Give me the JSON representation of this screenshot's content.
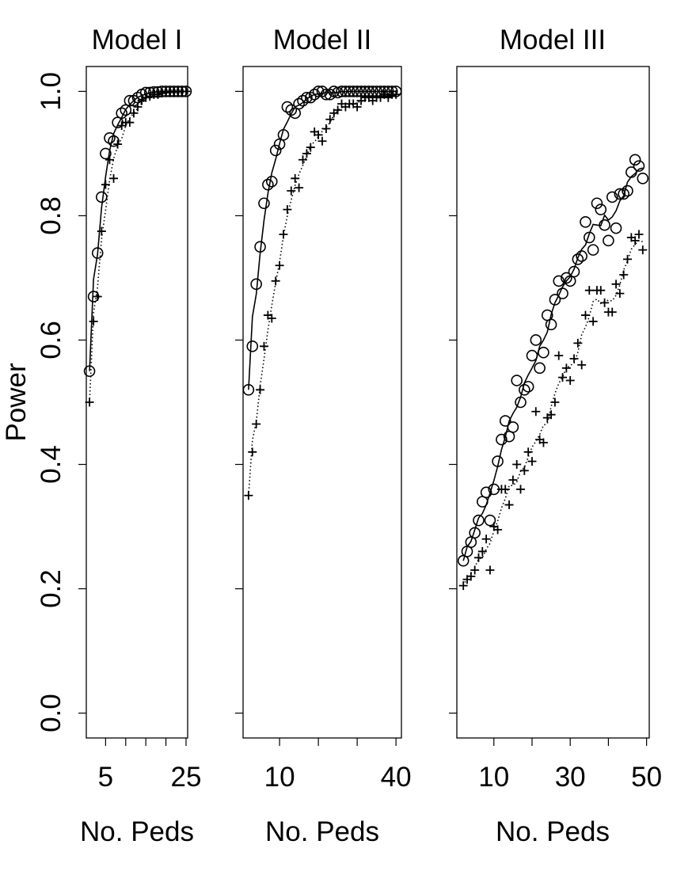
{
  "chart_data": [
    {
      "type": "scatter",
      "title": "Model I",
      "xlabel": "No. Peds",
      "ylabel": "Power",
      "xlim": [
        0.2,
        25.4
      ],
      "ylim": [
        -0.04,
        1.04
      ],
      "xticks": [
        5,
        10,
        15,
        20,
        25
      ],
      "xtick_labels": [
        "5",
        "",
        "",
        "",
        "25"
      ],
      "yticks": [
        0.0,
        0.2,
        0.4,
        0.6,
        0.8,
        1.0
      ],
      "ytick_labels": [
        "0.0",
        "0.2",
        "0.4",
        "0.6",
        "0.8",
        "1.0"
      ],
      "grid": false,
      "series": [
        {
          "name": "circles (solid line)",
          "marker": "o",
          "line": "solid",
          "x": [
            1,
            2,
            3,
            4,
            5,
            6,
            7,
            8,
            9,
            10,
            11,
            12,
            13,
            14,
            15,
            16,
            17,
            18,
            19,
            20,
            21,
            22,
            23,
            24,
            25
          ],
          "values": [
            0.55,
            0.67,
            0.74,
            0.83,
            0.9,
            0.925,
            0.92,
            0.95,
            0.965,
            0.97,
            0.985,
            0.985,
            0.99,
            0.995,
            0.998,
            0.998,
            0.999,
            0.999,
            1.0,
            1.0,
            1.0,
            1.0,
            1.0,
            1.0,
            1.0
          ]
        },
        {
          "name": "plus (dotted line)",
          "marker": "+",
          "line": "dotted",
          "x": [
            1,
            2,
            3,
            4,
            5,
            6,
            7,
            8,
            9,
            10,
            11,
            12,
            13,
            14,
            15,
            16,
            17,
            18,
            19,
            20,
            21,
            22,
            23,
            24,
            25
          ],
          "values": [
            0.5,
            0.63,
            0.67,
            0.775,
            0.85,
            0.89,
            0.86,
            0.915,
            0.945,
            0.95,
            0.95,
            0.965,
            0.975,
            0.985,
            0.99,
            0.992,
            0.995,
            0.995,
            0.997,
            0.998,
            0.999,
            0.999,
            1.0,
            1.0,
            1.0
          ]
        }
      ]
    },
    {
      "type": "scatter",
      "title": "Model II",
      "xlabel": "No. Peds",
      "ylabel": "",
      "xlim": [
        0.6,
        41.4
      ],
      "ylim": [
        -0.04,
        1.04
      ],
      "xticks": [
        10,
        20,
        30,
        40
      ],
      "xtick_labels": [
        "10",
        "",
        "",
        "40"
      ],
      "yticks": [
        0.0,
        0.2,
        0.4,
        0.6,
        0.8,
        1.0
      ],
      "grid": false,
      "series": [
        {
          "name": "circles (solid line)",
          "marker": "o",
          "line": "solid",
          "x": [
            2,
            3,
            4,
            5,
            6,
            7,
            8,
            9,
            10,
            11,
            12,
            13,
            14,
            15,
            16,
            17,
            18,
            19,
            20,
            21,
            22,
            23,
            24,
            25,
            26,
            27,
            28,
            29,
            30,
            31,
            32,
            33,
            34,
            35,
            36,
            37,
            38,
            39,
            40
          ],
          "values": [
            0.52,
            0.59,
            0.69,
            0.75,
            0.82,
            0.85,
            0.855,
            0.905,
            0.915,
            0.93,
            0.975,
            0.97,
            0.965,
            0.98,
            0.985,
            0.99,
            0.99,
            0.995,
            1.0,
            1.0,
            0.995,
            0.995,
            1.0,
            0.998,
            1.0,
            1.0,
            1.0,
            1.0,
            1.0,
            1.0,
            1.0,
            1.0,
            1.0,
            1.0,
            1.0,
            1.0,
            1.0,
            1.0,
            1.0
          ]
        },
        {
          "name": "plus (dotted line)",
          "marker": "+",
          "line": "dotted",
          "x": [
            2,
            3,
            4,
            5,
            6,
            7,
            8,
            9,
            10,
            11,
            12,
            13,
            14,
            15,
            16,
            17,
            18,
            19,
            20,
            21,
            22,
            23,
            24,
            25,
            26,
            27,
            28,
            29,
            30,
            31,
            32,
            33,
            34,
            35,
            36,
            37,
            38,
            39,
            40
          ],
          "values": [
            0.35,
            0.42,
            0.465,
            0.52,
            0.59,
            0.64,
            0.635,
            0.695,
            0.72,
            0.77,
            0.81,
            0.84,
            0.86,
            0.845,
            0.89,
            0.9,
            0.91,
            0.935,
            0.93,
            0.92,
            0.94,
            0.955,
            0.965,
            0.97,
            0.98,
            0.975,
            0.98,
            0.98,
            0.975,
            0.985,
            0.99,
            0.99,
            0.985,
            0.99,
            0.99,
            0.995,
            0.99,
            0.995,
            0.995
          ]
        }
      ]
    },
    {
      "type": "scatter",
      "title": "Model III",
      "xlabel": "No. Peds",
      "ylabel": "",
      "xlim": [
        0.3,
        50.7
      ],
      "ylim": [
        -0.04,
        1.04
      ],
      "xticks": [
        10,
        20,
        30,
        40,
        50
      ],
      "xtick_labels": [
        "10",
        "",
        "30",
        "",
        "50"
      ],
      "yticks": [
        0.0,
        0.2,
        0.4,
        0.6,
        0.8,
        1.0
      ],
      "grid": false,
      "series": [
        {
          "name": "circles (solid line)",
          "marker": "o",
          "line": "solid",
          "x": [
            2,
            3,
            4,
            5,
            6,
            7,
            8,
            9,
            10,
            11,
            12,
            13,
            14,
            15,
            16,
            17,
            18,
            19,
            20,
            21,
            22,
            23,
            24,
            25,
            26,
            27,
            28,
            29,
            30,
            31,
            32,
            33,
            34,
            35,
            36,
            37,
            38,
            39,
            40,
            41,
            42,
            43,
            44,
            45,
            46,
            47,
            48,
            49
          ],
          "values": [
            0.245,
            0.26,
            0.275,
            0.29,
            0.31,
            0.34,
            0.355,
            0.31,
            0.36,
            0.405,
            0.44,
            0.47,
            0.445,
            0.46,
            0.535,
            0.5,
            0.52,
            0.525,
            0.575,
            0.6,
            0.555,
            0.58,
            0.64,
            0.625,
            0.665,
            0.695,
            0.675,
            0.7,
            0.695,
            0.71,
            0.73,
            0.735,
            0.79,
            0.765,
            0.745,
            0.82,
            0.81,
            0.785,
            0.76,
            0.83,
            0.78,
            0.835,
            0.835,
            0.84,
            0.87,
            0.89,
            0.88,
            0.86
          ]
        },
        {
          "name": "plus (dotted line)",
          "marker": "+",
          "line": "dotted",
          "x": [
            2,
            3,
            4,
            5,
            6,
            7,
            8,
            9,
            10,
            11,
            12,
            13,
            14,
            15,
            16,
            17,
            18,
            19,
            20,
            21,
            22,
            23,
            24,
            25,
            26,
            27,
            28,
            29,
            30,
            31,
            32,
            33,
            34,
            35,
            36,
            37,
            38,
            39,
            40,
            41,
            42,
            43,
            44,
            45,
            46,
            47,
            48,
            49
          ],
          "values": [
            0.205,
            0.215,
            0.22,
            0.23,
            0.25,
            0.26,
            0.28,
            0.23,
            0.3,
            0.295,
            0.36,
            0.36,
            0.335,
            0.375,
            0.4,
            0.36,
            0.39,
            0.42,
            0.405,
            0.485,
            0.44,
            0.435,
            0.475,
            0.48,
            0.5,
            0.575,
            0.54,
            0.555,
            0.535,
            0.57,
            0.595,
            0.56,
            0.64,
            0.68,
            0.63,
            0.68,
            0.68,
            0.66,
            0.645,
            0.645,
            0.69,
            0.675,
            0.705,
            0.73,
            0.765,
            0.76,
            0.77,
            0.745
          ]
        }
      ]
    }
  ],
  "panels": [
    {
      "title": "Model I",
      "xlabel": "No. Peds"
    },
    {
      "title": "Model II",
      "xlabel": "No. Peds"
    },
    {
      "title": "Model III",
      "xlabel": "No. Peds"
    }
  ],
  "ylabel": "Power"
}
